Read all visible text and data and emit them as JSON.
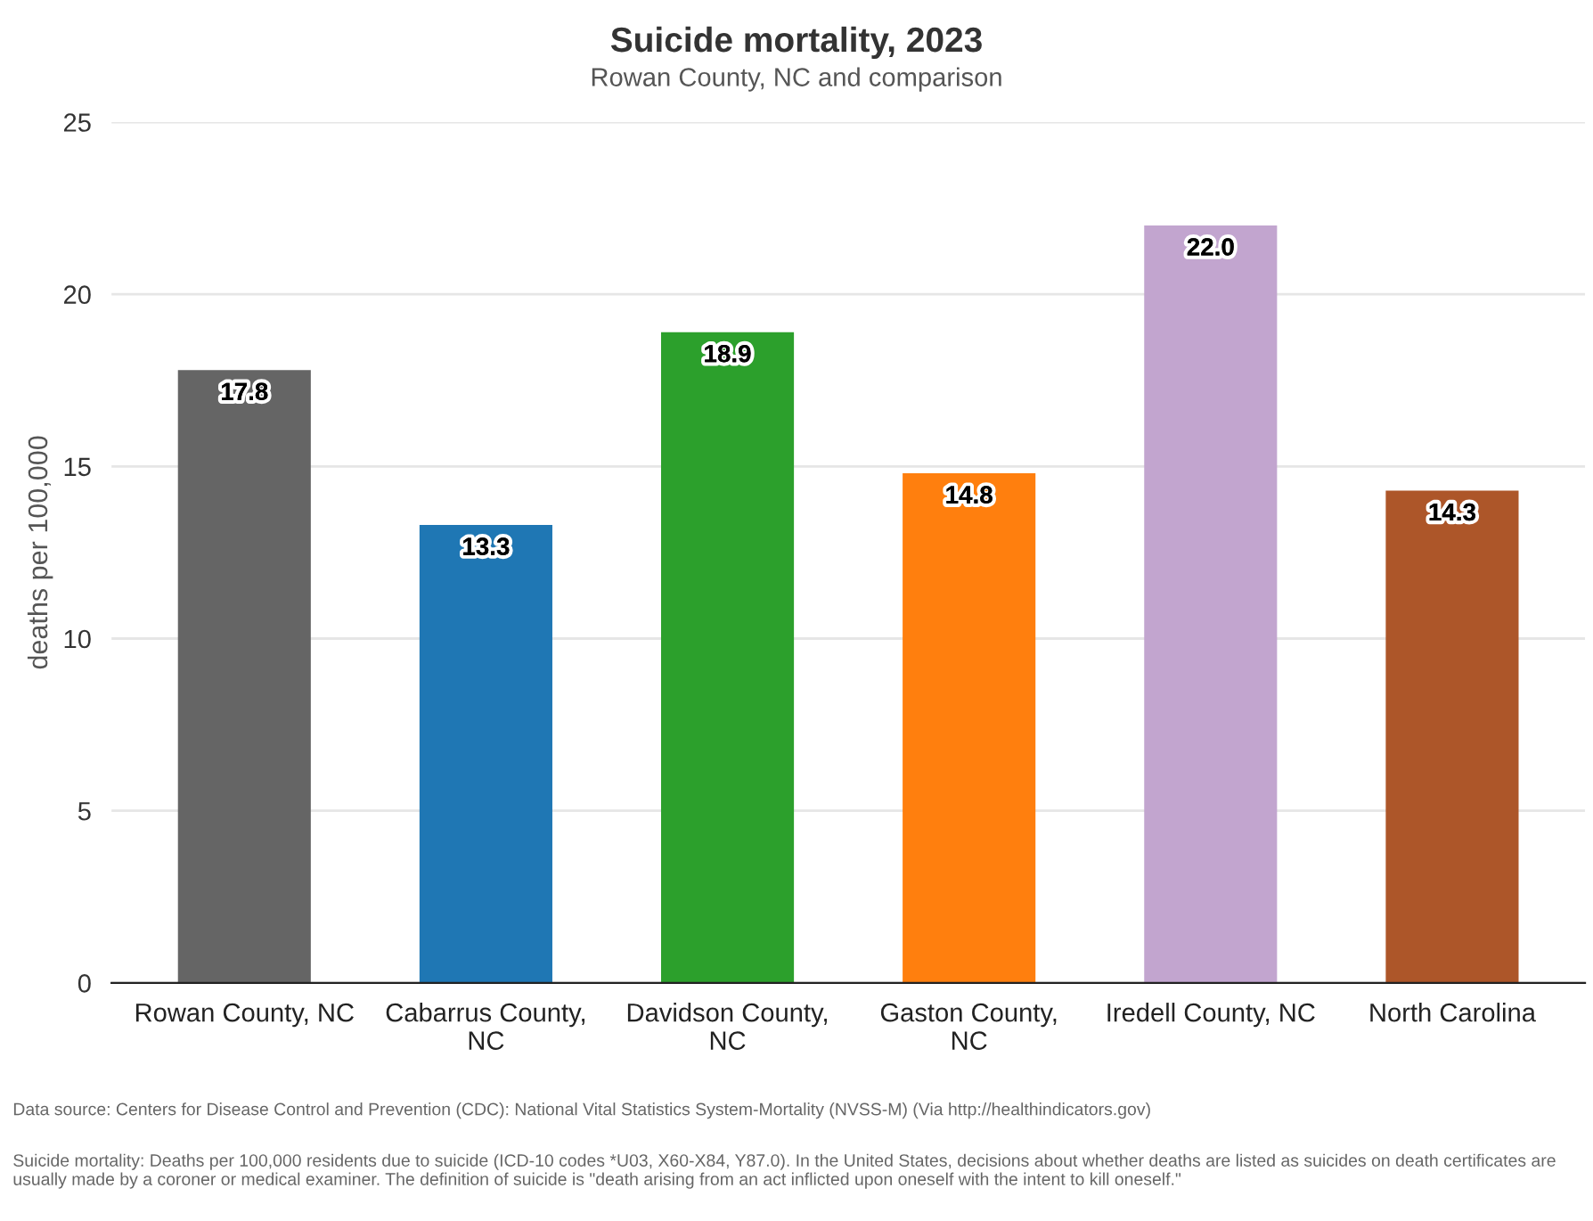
{
  "chart_data": {
    "type": "bar",
    "title": "Suicide mortality, 2023",
    "subtitle": "Rowan County, NC and comparison",
    "ylabel": "deaths per 100,000",
    "categories": [
      "Rowan County, NC",
      "Cabarrus County,\nNC",
      "Davidson County,\nNC",
      "Gaston County,\nNC",
      "Iredell County, NC",
      "North Carolina"
    ],
    "values": [
      17.8,
      13.3,
      18.9,
      14.8,
      22.0,
      14.3
    ],
    "colors": [
      "#656565",
      "#1f77b4",
      "#2ca02c",
      "#ff7f0e",
      "#c2a5cf",
      "#ad5629"
    ],
    "value_labels": [
      "17.8",
      "13.3",
      "18.9",
      "14.8",
      "22.0",
      "14.3"
    ],
    "ylim": [
      0,
      25
    ],
    "yticks": [
      0,
      5,
      10,
      15,
      20,
      25
    ],
    "grid": "y",
    "legend": false,
    "annotations": [
      "Data source: Centers for Disease Control and Prevention (CDC): National Vital Statistics System-Mortality (NVSS-M) (Via http://healthindicators.gov)",
      "Suicide mortality: Deaths per 100,000 residents due to suicide (ICD-10 codes *U03, X60-X84, Y87.0). In the United States, decisions about whether deaths are listed as suicides on death certificates are usually made by a coroner or medical examiner. The definition of suicide is \"death arising from an act inflicted upon oneself with the intent to kill oneself.\""
    ]
  }
}
